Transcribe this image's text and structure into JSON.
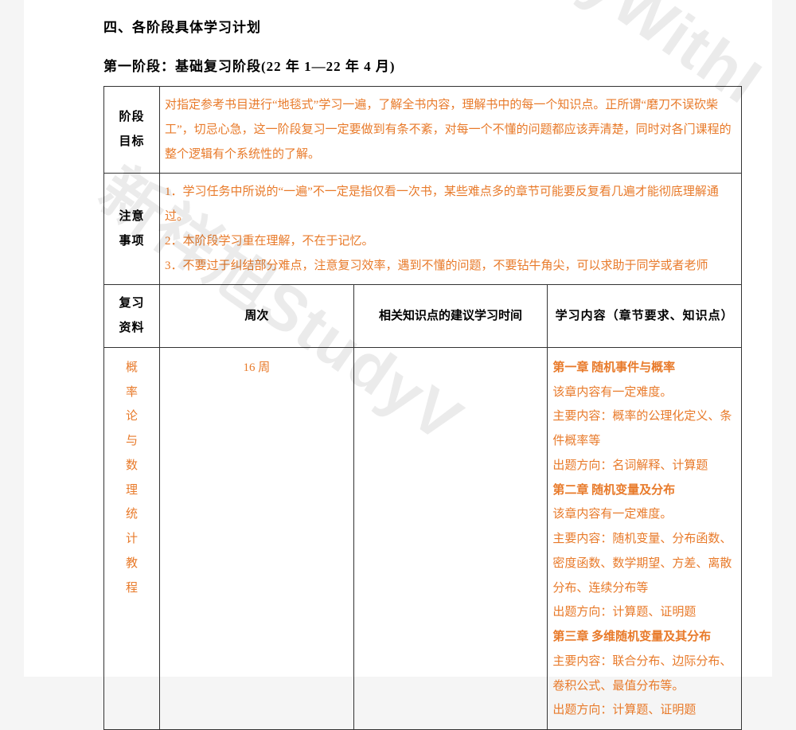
{
  "sectionTitle": "四、各阶段具体学习计划",
  "phaseTitle": "第一阶段：基础复习阶段(22 年 1—22 年 4 月)",
  "row1Label": "阶段\n目标",
  "row1Content": "对指定参考书目进行“地毯式”学习一遍，了解全书内容，理解书中的每一个知识点。正所谓“磨刀不误砍柴工”，切忌心急，这一阶段复习一定要做到有条不紊，对每一个不懂的问题都应该弄清楚，同时对各门课程的整个逻辑有个系统性的了解。",
  "row2Label": "注意\n事项",
  "row2Content": "1．学习任务中所说的“一遍”不一定是指仅看一次书，某些难点多的章节可能要反复看几遍才能彻底理解通过。\n2．本阶段学习重在理解，不在于记忆。\n3．不要过于纠结部分难点，注意复习效率，遇到不懂的问题，不要钻牛角尖，可以求助于同学或者老师",
  "hdr": {
    "material": "复习\n资料",
    "week": "周次",
    "time": "相关知识点的建议学习时间",
    "content": "学习内容（章节要求、知识点）"
  },
  "book": "概率论与数理统计教程",
  "weekVal": "16 周",
  "chapters": [
    {
      "title": "第一章  随机事件与概率",
      "lines": [
        "该章内容有一定难度。",
        "主要内容：概率的公理化定义、条件概率等",
        "出题方向：名词解释、计算题"
      ]
    },
    {
      "title": "第二章  随机变量及分布",
      "lines": [
        "该章内容有一定难度。",
        "主要内容：随机变量、分布函数、密度函数、数学期望、方差、离散分布、连续分布等",
        "出题方向：计算题、证明题"
      ]
    },
    {
      "title": "第三章  多维随机变量及其分布",
      "lines": [
        "主要内容：联合分布、边际分布、卷积公式、最值分布等。",
        "出题方向：计算题、证明题"
      ]
    }
  ],
  "watermark1": "StudyWithI",
  "watermark2": "新祥旭StudyV",
  "colors": {
    "orange": "#e87a2a",
    "border": "#333333",
    "bg": "#ffffff",
    "pagebg": "#f5f5f5"
  }
}
